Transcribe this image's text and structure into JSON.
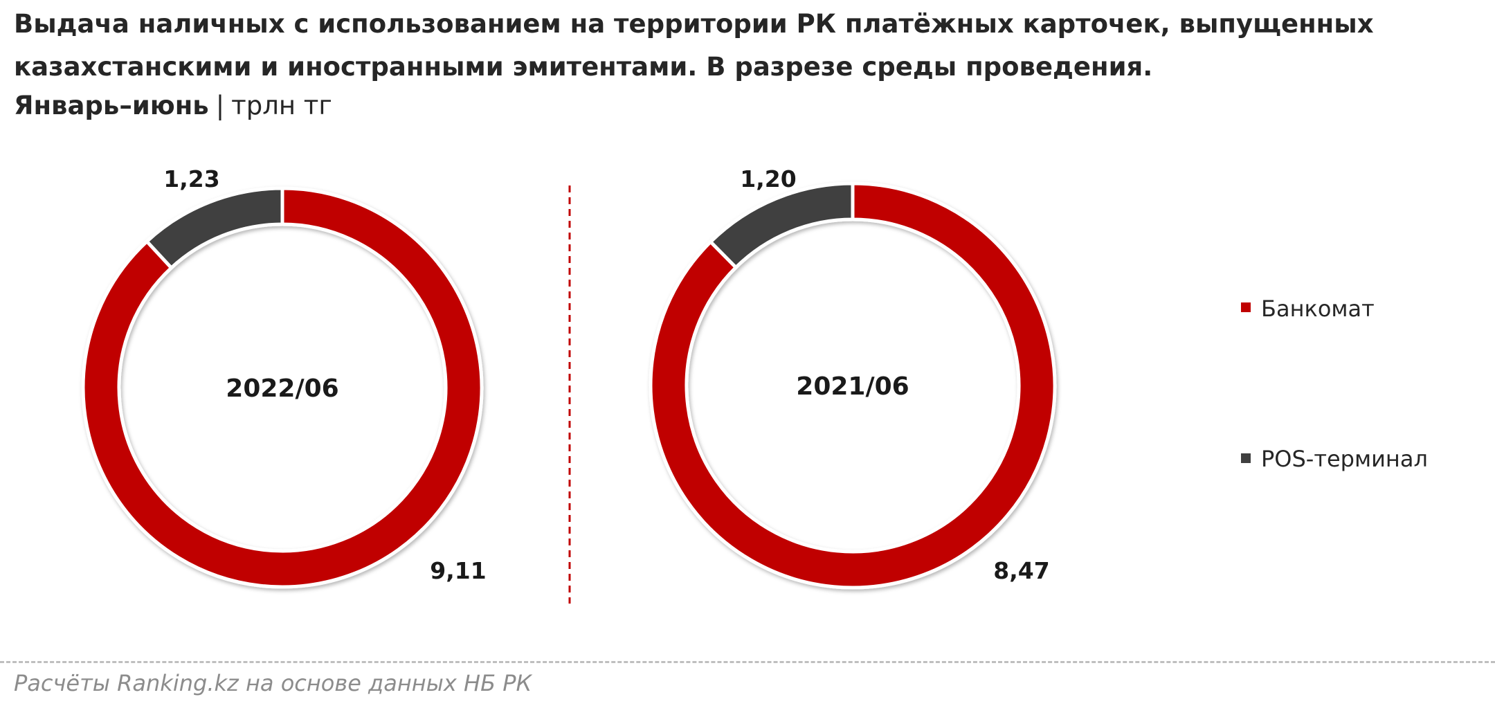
{
  "header": {
    "title_line1": "Выдача наличных с использованием на территории РК платёжных карточек, выпущенных",
    "title_line2": "казахстанскими и иностранными эмитентами. В разрезе среды проведения.",
    "period": "Январь–июнь",
    "separator": "|",
    "unit": "трлн тг"
  },
  "colors": {
    "atm": "#c00000",
    "pos": "#404040",
    "divider": "#c00000"
  },
  "chart_data": [
    {
      "type": "pie",
      "variant": "donut",
      "center_label": "2022/06",
      "categories": [
        "Банкомат",
        "POS-терминал"
      ],
      "values": [
        9.11,
        1.23
      ],
      "value_labels": [
        "9,11",
        "1,23"
      ]
    },
    {
      "type": "pie",
      "variant": "donut",
      "center_label": "2021/06",
      "categories": [
        "Банкомат",
        "POS-терминал"
      ],
      "values": [
        8.47,
        1.2
      ],
      "value_labels": [
        "8,47",
        "1,20"
      ]
    }
  ],
  "legend": {
    "placement": "right",
    "items": [
      {
        "label": "Банкомат",
        "color": "#c00000"
      },
      {
        "label": "POS-терминал",
        "color": "#404040"
      }
    ]
  },
  "footer": {
    "source": "Расчёты Ranking.kz на основе данных НБ РК"
  }
}
